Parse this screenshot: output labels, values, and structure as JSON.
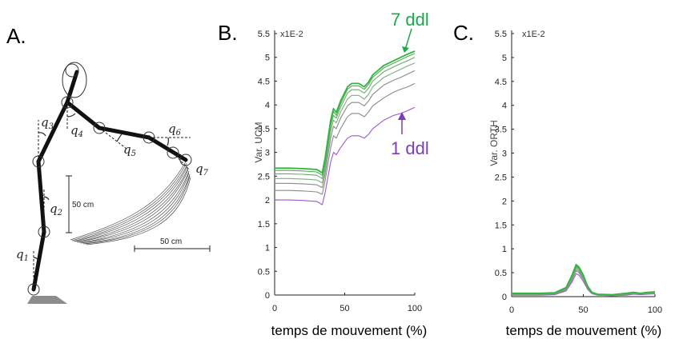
{
  "panel_a": {
    "letter": "A.",
    "joint_labels": [
      {
        "name": "q",
        "sub": "1"
      },
      {
        "name": "q",
        "sub": "2"
      },
      {
        "name": "q",
        "sub": "3"
      },
      {
        "name": "q",
        "sub": "4"
      },
      {
        "name": "q",
        "sub": "5"
      },
      {
        "name": "q",
        "sub": "6"
      },
      {
        "name": "q",
        "sub": "7"
      }
    ],
    "scale_vertical": "50 cm",
    "scale_horizontal": "50 cm"
  },
  "annotations": {
    "top": "7 ddl",
    "bottom": "1 ddl",
    "top_color": "#1aa84a",
    "bottom_color": "#7a3fb0"
  },
  "chart_data": [
    {
      "type": "line",
      "panel": "B.",
      "multiplier": "x1E-2",
      "xlabel": "temps de mouvement (%)",
      "ylabel": "Var. UCM",
      "xlim": [
        0,
        100
      ],
      "ylim": [
        0,
        5.5
      ],
      "xticks": [
        "0",
        "50",
        "100"
      ],
      "yticks": [
        "0",
        "0.5",
        "1",
        "1.5",
        "2",
        "2.5",
        "3",
        "3.5",
        "4",
        "4.5",
        "5",
        "5.5"
      ],
      "x": [
        0,
        10,
        20,
        30,
        34,
        36,
        40,
        42,
        44,
        47,
        52,
        55,
        60,
        64,
        67,
        70,
        78,
        85,
        90,
        95,
        100
      ],
      "series": [
        {
          "color": "#9b59c9",
          "values": [
            2.0,
            2.0,
            1.99,
            1.97,
            1.9,
            2.15,
            2.8,
            3.0,
            2.95,
            3.1,
            3.3,
            3.35,
            3.35,
            3.3,
            3.38,
            3.5,
            3.68,
            3.78,
            3.82,
            3.88,
            3.95
          ]
        },
        {
          "color": "#8a8a8a",
          "values": [
            2.2,
            2.2,
            2.19,
            2.17,
            2.12,
            2.4,
            3.1,
            3.35,
            3.3,
            3.5,
            3.75,
            3.82,
            3.82,
            3.75,
            3.85,
            3.98,
            4.15,
            4.27,
            4.33,
            4.38,
            4.45
          ]
        },
        {
          "color": "#8a8a8a",
          "values": [
            2.35,
            2.35,
            2.34,
            2.32,
            2.26,
            2.55,
            3.3,
            3.55,
            3.5,
            3.72,
            3.98,
            4.05,
            4.05,
            3.98,
            4.08,
            4.22,
            4.42,
            4.52,
            4.58,
            4.65,
            4.72
          ]
        },
        {
          "color": "#7fae7f",
          "values": [
            2.45,
            2.45,
            2.44,
            2.42,
            2.36,
            2.65,
            3.45,
            3.68,
            3.62,
            3.85,
            4.12,
            4.2,
            4.2,
            4.12,
            4.22,
            4.38,
            4.58,
            4.68,
            4.75,
            4.82,
            4.88
          ]
        },
        {
          "color": "#6aaa6a",
          "values": [
            2.55,
            2.55,
            2.54,
            2.52,
            2.45,
            2.75,
            3.55,
            3.78,
            3.72,
            3.95,
            4.25,
            4.32,
            4.32,
            4.25,
            4.35,
            4.5,
            4.7,
            4.8,
            4.87,
            4.93,
            5.0
          ]
        },
        {
          "color": "#4fae4f",
          "values": [
            2.62,
            2.62,
            2.61,
            2.59,
            2.52,
            2.82,
            3.62,
            3.86,
            3.78,
            4.02,
            4.33,
            4.4,
            4.4,
            4.33,
            4.43,
            4.58,
            4.78,
            4.88,
            4.95,
            5.02,
            5.08
          ]
        },
        {
          "color": "#2fb540",
          "values": [
            2.67,
            2.67,
            2.66,
            2.64,
            2.57,
            2.88,
            3.68,
            3.92,
            3.84,
            4.08,
            4.38,
            4.45,
            4.45,
            4.38,
            4.48,
            4.63,
            4.83,
            4.93,
            5.0,
            5.07,
            5.13
          ]
        }
      ]
    },
    {
      "type": "line",
      "panel": "C.",
      "multiplier": "x1E-2",
      "xlabel": "temps de mouvement (%)",
      "ylabel": "Var. ORTH",
      "xlim": [
        0,
        100
      ],
      "ylim": [
        0,
        5.5
      ],
      "xticks": [
        "0",
        "50",
        "100"
      ],
      "yticks": [
        "0",
        "0.5",
        "1",
        "1.5",
        "2",
        "2.5",
        "3",
        "3.5",
        "4",
        "4.5",
        "5",
        "5.5"
      ],
      "x": [
        0,
        10,
        20,
        30,
        38,
        42,
        45,
        47,
        50,
        53,
        56,
        60,
        70,
        80,
        85,
        90,
        95,
        100
      ],
      "series": [
        {
          "color": "#9b59c9",
          "values": [
            0.03,
            0.03,
            0.03,
            0.04,
            0.12,
            0.3,
            0.48,
            0.45,
            0.32,
            0.15,
            0.06,
            0.03,
            0.02,
            0.03,
            0.05,
            0.04,
            0.05,
            0.06
          ]
        },
        {
          "color": "#8a8a8a",
          "values": [
            0.04,
            0.04,
            0.04,
            0.05,
            0.14,
            0.34,
            0.54,
            0.5,
            0.36,
            0.17,
            0.07,
            0.03,
            0.02,
            0.04,
            0.06,
            0.05,
            0.06,
            0.07
          ]
        },
        {
          "color": "#8a8a8a",
          "values": [
            0.05,
            0.05,
            0.05,
            0.06,
            0.15,
            0.36,
            0.57,
            0.53,
            0.38,
            0.18,
            0.07,
            0.04,
            0.03,
            0.05,
            0.07,
            0.05,
            0.07,
            0.08
          ]
        },
        {
          "color": "#7fae7f",
          "values": [
            0.05,
            0.05,
            0.05,
            0.06,
            0.16,
            0.38,
            0.6,
            0.56,
            0.4,
            0.19,
            0.08,
            0.04,
            0.03,
            0.05,
            0.07,
            0.06,
            0.07,
            0.08
          ]
        },
        {
          "color": "#6aaa6a",
          "values": [
            0.06,
            0.06,
            0.06,
            0.07,
            0.17,
            0.4,
            0.62,
            0.58,
            0.42,
            0.2,
            0.08,
            0.05,
            0.04,
            0.06,
            0.08,
            0.06,
            0.08,
            0.09
          ]
        },
        {
          "color": "#4fae4f",
          "values": [
            0.06,
            0.06,
            0.06,
            0.07,
            0.18,
            0.42,
            0.64,
            0.6,
            0.43,
            0.21,
            0.09,
            0.05,
            0.04,
            0.06,
            0.08,
            0.07,
            0.08,
            0.09
          ]
        },
        {
          "color": "#2fb540",
          "values": [
            0.07,
            0.07,
            0.07,
            0.08,
            0.19,
            0.44,
            0.67,
            0.62,
            0.45,
            0.22,
            0.09,
            0.05,
            0.04,
            0.07,
            0.09,
            0.07,
            0.09,
            0.1
          ]
        }
      ]
    }
  ]
}
